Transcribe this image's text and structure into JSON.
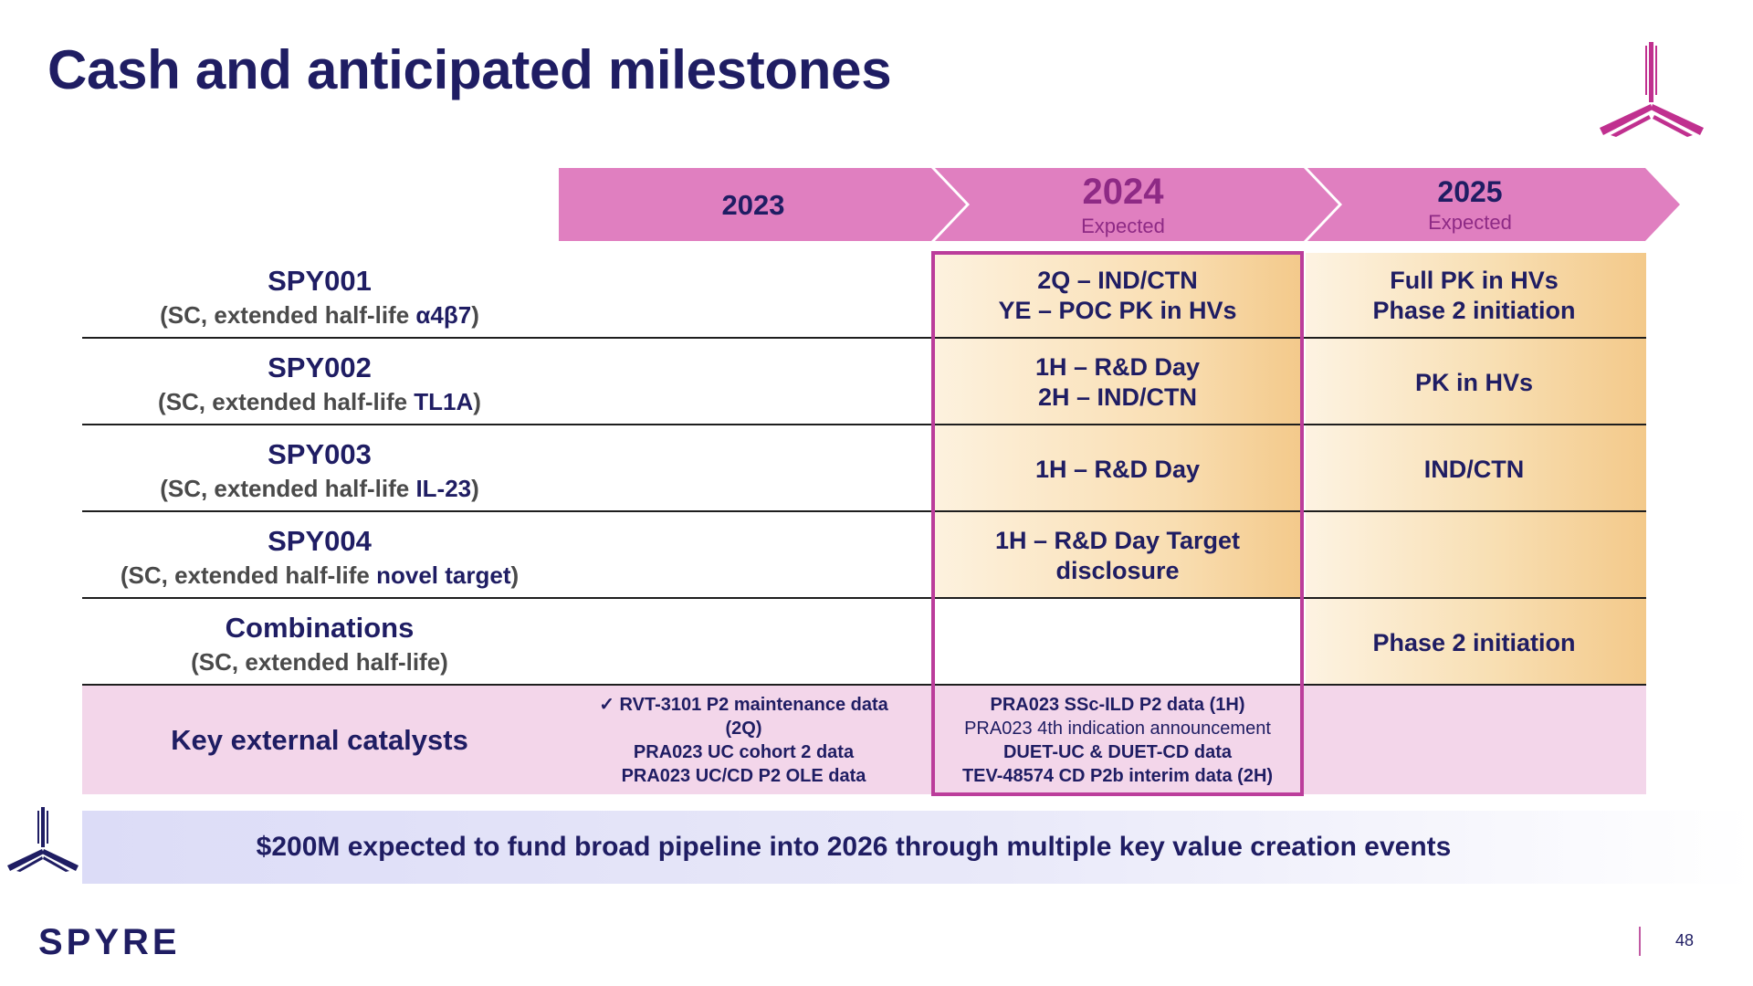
{
  "title": "Cash and anticipated milestones",
  "colors": {
    "navy": "#1f1d63",
    "magenta": "#bb3d9b",
    "chevron": "#e07fc0",
    "orange_gradient": "#f3c98a",
    "catalyst_bg": "#f3d6ea"
  },
  "timeline": {
    "y2023": "2023",
    "y2024": "2024",
    "y2024_sub": "Expected",
    "y2025": "2025",
    "y2025_sub": "Expected"
  },
  "rows": [
    {
      "name": "SPY001",
      "desc_prefix": "(SC, extended half-life ",
      "desc_target": "α4β7",
      "desc_suffix": ")",
      "m2024": [
        "2Q – IND/CTN",
        "YE – POC PK in HVs"
      ],
      "m2025": [
        "Full PK in HVs",
        "Phase 2 initiation"
      ]
    },
    {
      "name": "SPY002",
      "desc_prefix": "(SC, extended half-life ",
      "desc_target": "TL1A",
      "desc_suffix": ")",
      "m2024": [
        "1H – R&D Day",
        "2H – IND/CTN"
      ],
      "m2025": [
        "PK in HVs"
      ]
    },
    {
      "name": "SPY003",
      "desc_prefix": "(SC, extended half-life ",
      "desc_target": "IL-23",
      "desc_suffix": ")",
      "m2024": [
        "1H – R&D Day"
      ],
      "m2025": [
        "IND/CTN"
      ]
    },
    {
      "name": "SPY004",
      "desc_prefix": "(SC, extended half-life ",
      "desc_target": "novel target",
      "desc_suffix": ")",
      "m2024": [
        "1H – R&D Day Target",
        "disclosure"
      ],
      "m2025": []
    },
    {
      "name": "Combinations",
      "desc_prefix": "(SC, extended half-life)",
      "desc_target": "",
      "desc_suffix": "",
      "m2024": [],
      "m2025": [
        "Phase 2 initiation"
      ]
    }
  ],
  "catalysts": {
    "label": "Key external catalysts",
    "c2023": [
      "✓ RVT-3101 P2 maintenance data",
      "(2Q)",
      "PRA023 UC cohort 2 data",
      "PRA023 UC/CD P2 OLE data"
    ],
    "c2024": [
      "PRA023 SSc-ILD P2 data (1H)",
      "PRA023 4th indication announcement",
      "DUET-UC & DUET-CD data",
      "TEV-48574 CD P2b interim data (2H)"
    ]
  },
  "banner": "$200M expected to fund broad pipeline into 2026 through multiple key value creation events",
  "footer": {
    "brand": "SPYRE",
    "page_number": "48"
  }
}
